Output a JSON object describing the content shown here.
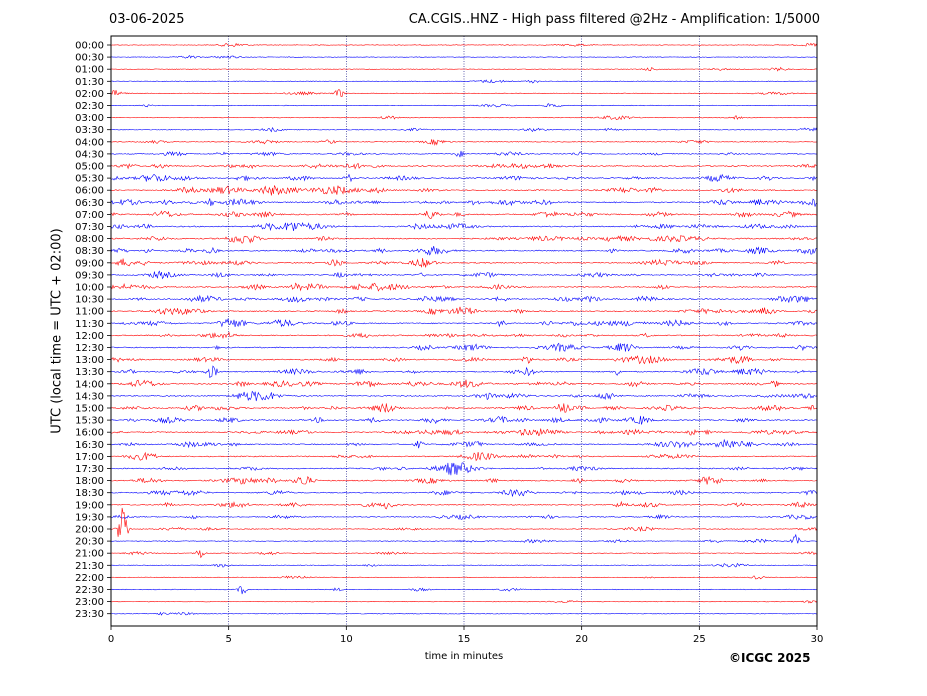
{
  "header": {
    "date": "03-06-2025",
    "title": "CA.CGIS..HNZ - High pass filtered @2Hz - Amplification: 1/5000"
  },
  "footer": {
    "copyright": "©ICGC 2025"
  },
  "chart_data": {
    "type": "line",
    "title": "CA.CGIS..HNZ - High pass filtered @2Hz - Amplification: 1/5000",
    "xlabel": "time in minutes",
    "ylabel": "UTC (local time = UTC + 02:00)",
    "xlim": [
      0,
      30
    ],
    "x_ticks": [
      0,
      5,
      10,
      15,
      20,
      25,
      30
    ],
    "grid": "vertical dotted lines every 5 minutes",
    "series_colors": [
      "#ff0000",
      "#0000ff"
    ],
    "categories": [
      "00:00",
      "00:30",
      "01:00",
      "01:30",
      "02:00",
      "02:30",
      "03:00",
      "03:30",
      "04:00",
      "04:30",
      "05:00",
      "05:30",
      "06:00",
      "06:30",
      "07:00",
      "07:30",
      "08:00",
      "08:30",
      "09:00",
      "09:30",
      "10:00",
      "10:30",
      "11:00",
      "11:30",
      "12:00",
      "12:30",
      "13:00",
      "13:30",
      "14:00",
      "14:30",
      "15:00",
      "15:30",
      "16:00",
      "16:30",
      "17:00",
      "17:30",
      "18:00",
      "18:30",
      "19:00",
      "19:30",
      "20:00",
      "20:30",
      "21:00",
      "21:30",
      "22:00",
      "22:30",
      "23:00",
      "23:30"
    ],
    "trace_activity": [
      0.08,
      0.06,
      0.08,
      0.06,
      0.1,
      0.08,
      0.1,
      0.14,
      0.16,
      0.2,
      0.34,
      0.4,
      0.42,
      0.45,
      0.42,
      0.4,
      0.45,
      0.42,
      0.38,
      0.32,
      0.38,
      0.45,
      0.4,
      0.42,
      0.36,
      0.4,
      0.38,
      0.4,
      0.42,
      0.38,
      0.44,
      0.4,
      0.42,
      0.38,
      0.34,
      0.32,
      0.36,
      0.32,
      0.3,
      0.22,
      0.16,
      0.12,
      0.1,
      0.08,
      0.08,
      0.08,
      0.06,
      0.06
    ],
    "events": [
      {
        "row": "02:00",
        "minute": 9.7,
        "amplitude": 0.75
      },
      {
        "row": "04:30",
        "minute": 14.8,
        "amplitude": 0.55
      },
      {
        "row": "05:30",
        "minute": 10.1,
        "amplitude": 0.6
      },
      {
        "row": "06:30",
        "minute": 4.2,
        "amplitude": 0.6
      },
      {
        "row": "06:30",
        "minute": 29.9,
        "amplitude": 0.55
      },
      {
        "row": "07:30",
        "minute": 7.7,
        "amplitude": 0.55
      },
      {
        "row": "08:30",
        "minute": 1.6,
        "amplitude": 0.55
      },
      {
        "row": "10:30",
        "minute": 13.3,
        "amplitude": 0.6
      },
      {
        "row": "11:30",
        "minute": 16.6,
        "amplitude": 0.55
      },
      {
        "row": "13:00",
        "minute": 17.7,
        "amplitude": 0.85
      },
      {
        "row": "13:00",
        "minute": 21.6,
        "amplitude": 0.5
      },
      {
        "row": "13:30",
        "minute": 4.3,
        "amplitude": 0.85
      },
      {
        "row": "13:30",
        "minute": 21.5,
        "amplitude": 0.6
      },
      {
        "row": "14:00",
        "minute": 28.2,
        "amplitude": 0.55
      },
      {
        "row": "15:00",
        "minute": 29.7,
        "amplitude": 0.55
      },
      {
        "row": "16:00",
        "minute": 24.7,
        "amplitude": 0.5
      },
      {
        "row": "16:30",
        "minute": 13.1,
        "amplitude": 0.6
      },
      {
        "row": "18:00",
        "minute": 16.2,
        "amplitude": 0.55
      },
      {
        "row": "19:00",
        "minute": 11.8,
        "amplitude": 0.5
      },
      {
        "row": "20:30",
        "minute": 29.1,
        "amplitude": 1.0
      },
      {
        "row": "21:00",
        "minute": 3.8,
        "amplitude": 0.85
      },
      {
        "row": "20:00",
        "minute": 0.5,
        "amplitude": 4.5
      },
      {
        "row": "22:30",
        "minute": 5.6,
        "amplitude": 0.8
      }
    ]
  }
}
